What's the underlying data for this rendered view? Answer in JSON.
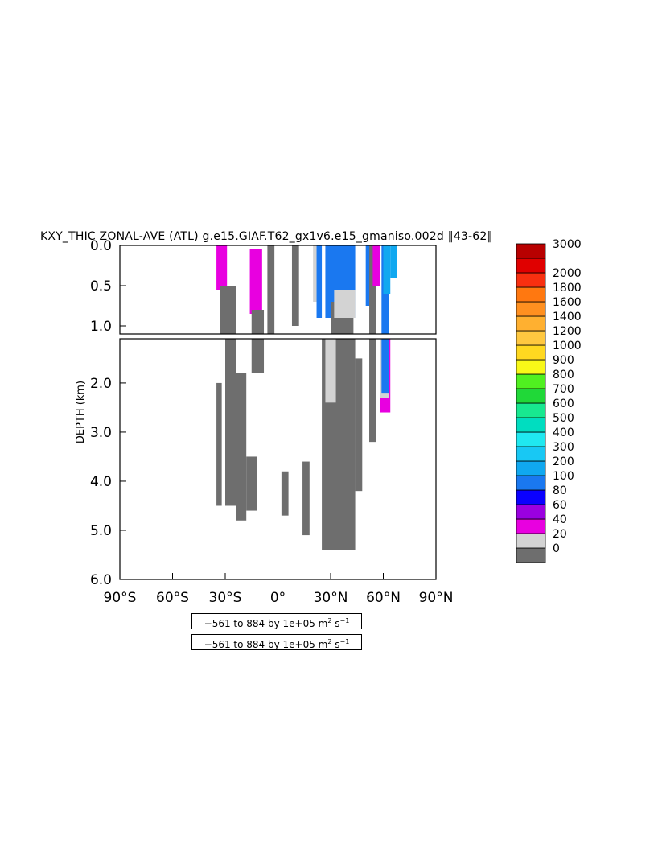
{
  "chart_data": {
    "type": "heatmap",
    "title": "KXY_THIC ZONAL-AVE (ATL) g.e15.GIAF.T62_gx1v6.e15_gmaniso.002d  ‖43-62‖",
    "ylabel": "DEPTH (km)",
    "xlabel": "",
    "x_ticks": [
      "90°S",
      "60°S",
      "30°S",
      "0°",
      "30°N",
      "60°N",
      "90°N"
    ],
    "xlim": [
      -90,
      90
    ],
    "upper_panel": {
      "ylim": [
        0.0,
        1.1
      ],
      "y_ticks": [
        "0.0",
        "0.5",
        "1.0"
      ]
    },
    "lower_panel": {
      "ylim": [
        1.1,
        6.0
      ],
      "y_ticks": [
        "2.0",
        "3.0",
        "4.0",
        "5.0",
        "6.0"
      ]
    },
    "colorbar": {
      "levels": [
        "0",
        "20",
        "40",
        "60",
        "80",
        "100",
        "200",
        "300",
        "400",
        "500",
        "600",
        "700",
        "800",
        "900",
        "1000",
        "1200",
        "1400",
        "1600",
        "1800",
        "2000",
        "3000"
      ],
      "colors": [
        "#6e6e6e",
        "#d3d3d3",
        "#e800e0",
        "#9a00e0",
        "#0a00ff",
        "#1a78f0",
        "#10a8f0",
        "#18c8f4",
        "#20e8f0",
        "#00ddc0",
        "#18e890",
        "#20d838",
        "#50f020",
        "#f8f818",
        "#ffd820",
        "#ffc840",
        "#ffb030",
        "#ff9020",
        "#ff7810",
        "#f83010",
        "#e00000",
        "#b80000"
      ]
    },
    "regions": [
      {
        "lat": [
          -34,
          -30
        ],
        "depth": [
          0.0,
          0.5
        ],
        "level": 5
      },
      {
        "lat": [
          -35,
          -29
        ],
        "depth": [
          0.0,
          0.55
        ],
        "level": 2
      },
      {
        "lat": [
          -33,
          -24
        ],
        "depth": [
          0.5,
          1.1
        ],
        "level": 0
      },
      {
        "lat": [
          -35,
          -32
        ],
        "depth": [
          2.0,
          4.5
        ],
        "level": 0
      },
      {
        "lat": [
          -30,
          -24
        ],
        "depth": [
          1.1,
          4.5
        ],
        "level": 0
      },
      {
        "lat": [
          -24,
          -18
        ],
        "depth": [
          1.8,
          4.8
        ],
        "level": 0
      },
      {
        "lat": [
          -18,
          -12
        ],
        "depth": [
          3.5,
          4.6
        ],
        "level": 0
      },
      {
        "lat": [
          -15,
          -10
        ],
        "depth": [
          0.1,
          0.7
        ],
        "level": 5
      },
      {
        "lat": [
          -16,
          -9
        ],
        "depth": [
          0.05,
          0.85
        ],
        "level": 2
      },
      {
        "lat": [
          -15,
          -8
        ],
        "depth": [
          0.8,
          1.8
        ],
        "level": 0
      },
      {
        "lat": [
          -6,
          -2
        ],
        "depth": [
          0.0,
          1.1
        ],
        "level": 0
      },
      {
        "lat": [
          2,
          6
        ],
        "depth": [
          3.8,
          4.7
        ],
        "level": 0
      },
      {
        "lat": [
          8,
          12
        ],
        "depth": [
          0.0,
          1.0
        ],
        "level": 0
      },
      {
        "lat": [
          14,
          18
        ],
        "depth": [
          3.6,
          5.1
        ],
        "level": 0
      },
      {
        "lat": [
          20,
          22
        ],
        "depth": [
          0.0,
          0.7
        ],
        "level": 1
      },
      {
        "lat": [
          22,
          25
        ],
        "depth": [
          0.0,
          0.9
        ],
        "level": 5
      },
      {
        "lat": [
          25,
          44
        ],
        "depth": [
          1.1,
          5.4
        ],
        "level": 0
      },
      {
        "lat": [
          27,
          33
        ],
        "depth": [
          1.1,
          2.4
        ],
        "level": 1
      },
      {
        "lat": [
          28,
          42
        ],
        "depth": [
          0.0,
          0.45
        ],
        "level": 6
      },
      {
        "lat": [
          27,
          44
        ],
        "depth": [
          0.0,
          0.9
        ],
        "level": 5
      },
      {
        "lat": [
          30,
          43
        ],
        "depth": [
          0.7,
          1.1
        ],
        "level": 0
      },
      {
        "lat": [
          32,
          44
        ],
        "depth": [
          0.55,
          0.9
        ],
        "level": 1
      },
      {
        "lat": [
          44,
          48
        ],
        "depth": [
          1.5,
          4.2
        ],
        "level": 0
      },
      {
        "lat": [
          50,
          54
        ],
        "depth": [
          0.0,
          0.75
        ],
        "level": 5
      },
      {
        "lat": [
          52,
          56
        ],
        "depth": [
          0.0,
          3.2
        ],
        "level": 0
      },
      {
        "lat": [
          54,
          58
        ],
        "depth": [
          0.0,
          0.5
        ],
        "level": 2
      },
      {
        "lat": [
          58,
          64
        ],
        "depth": [
          1.1,
          2.6
        ],
        "level": 2
      },
      {
        "lat": [
          58,
          63
        ],
        "depth": [
          1.1,
          2.3
        ],
        "level": 1
      },
      {
        "lat": [
          59,
          63
        ],
        "depth": [
          0.0,
          2.2
        ],
        "level": 5
      },
      {
        "lat": [
          60,
          64
        ],
        "depth": [
          0.0,
          0.6
        ],
        "level": 6
      },
      {
        "lat": [
          64,
          68
        ],
        "depth": [
          0.0,
          0.4
        ],
        "level": 6
      }
    ]
  },
  "info_box": {
    "line1": {
      "text": "−561 to 884 by 1e+05 m",
      "sup1": "2",
      "mid": " s",
      "sup2": "−1"
    },
    "line2": {
      "text": "−561 to 884 by 1e+05 m",
      "sup1": "2",
      "mid": " s",
      "sup2": "−1"
    }
  }
}
